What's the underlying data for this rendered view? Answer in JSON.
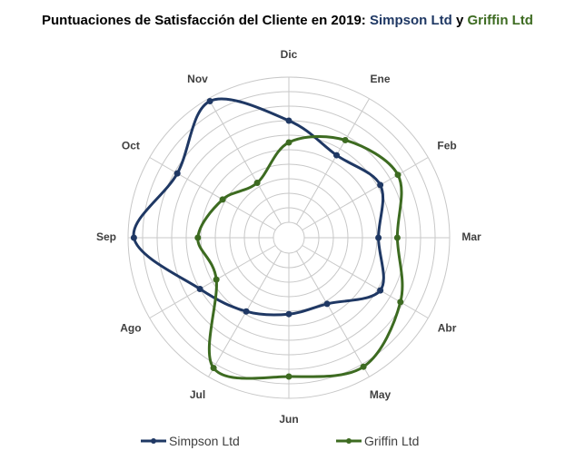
{
  "chart_data": {
    "type": "radar",
    "title_prefix": "Puntuaciones de Satisfacción del Cliente en 2019: ",
    "title_series1": "Simpson Ltd",
    "title_conj": " y ",
    "title_series2": "Griffin Ltd",
    "categories": [
      "Dic",
      "Ene",
      "Feb",
      "Mar",
      "Abr",
      "May",
      "Jun",
      "Jul",
      "Ago",
      "Sep",
      "Oct",
      "Nov"
    ],
    "rlim": [
      0,
      10
    ],
    "grid": true,
    "legend_position": "bottom",
    "series": [
      {
        "name": "Simpson Ltd",
        "color": "#1f3864",
        "values": [
          7.0,
          5.5,
          6.2,
          5.1,
          6.2,
          4.2,
          4.2,
          4.8,
          6.0,
          9.6,
          7.8,
          9.8
        ]
      },
      {
        "name": "Griffin Ltd",
        "color": "#3d6b21",
        "values": [
          5.5,
          6.7,
          7.6,
          6.4,
          7.8,
          9.2,
          8.5,
          9.3,
          4.7,
          5.2,
          4.2,
          3.3
        ]
      }
    ]
  }
}
